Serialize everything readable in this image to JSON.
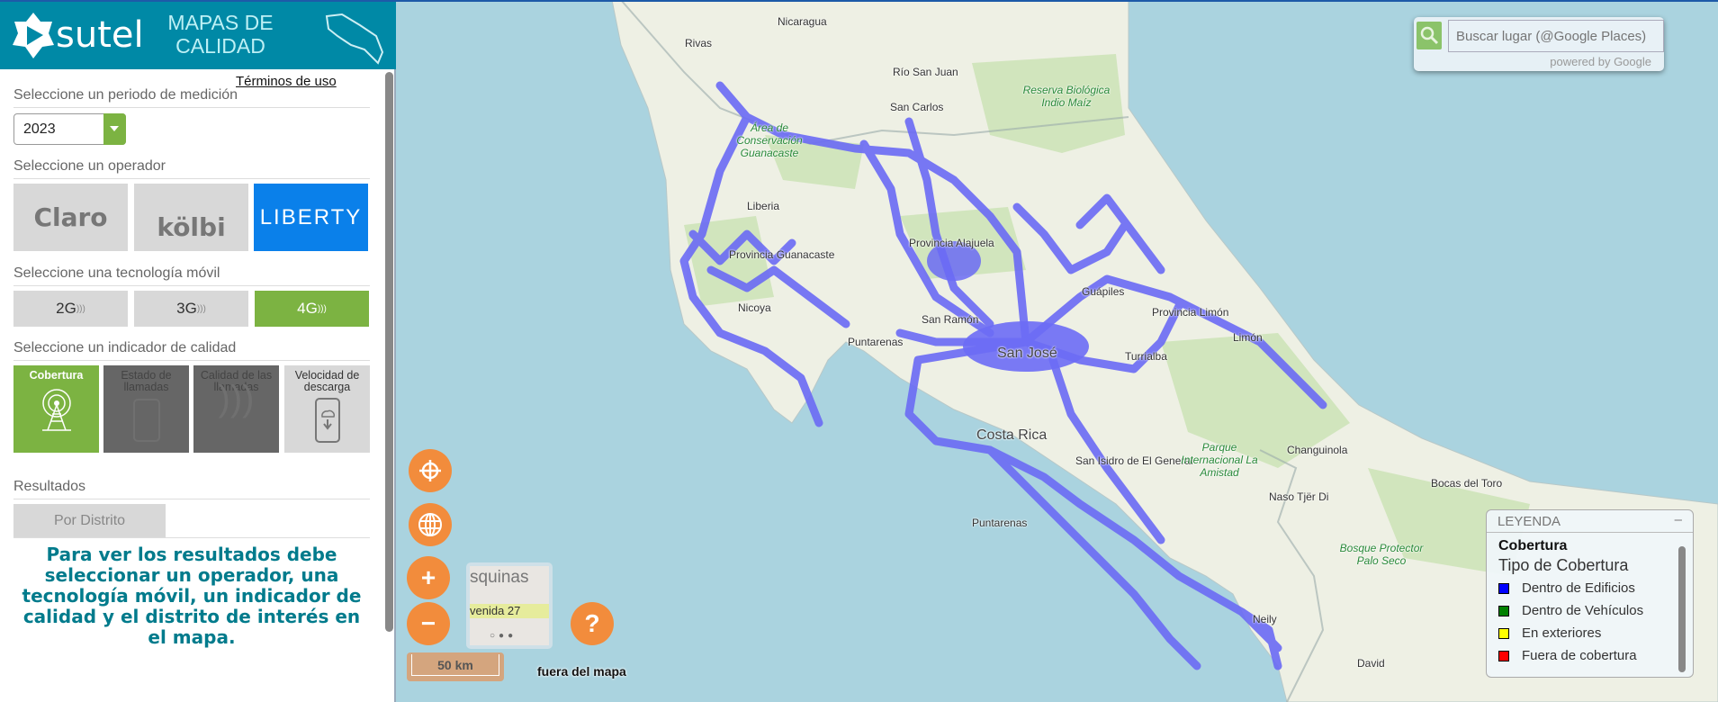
{
  "header": {
    "logo": "sutel",
    "title": "MAPAS DE CALIDAD"
  },
  "sidebar": {
    "terms_link": "Términos de uso",
    "period": {
      "label": "Seleccione un periodo de medición",
      "value": "2023"
    },
    "operator": {
      "label": "Seleccione un operador",
      "items": [
        {
          "label": "Claro"
        },
        {
          "label": "kölbi"
        },
        {
          "label": "LIBERTY",
          "selected": true
        }
      ]
    },
    "technology": {
      "label": "Seleccione una tecnología móvil",
      "items": [
        {
          "label": "2G"
        },
        {
          "label": "3G"
        },
        {
          "label": "4G",
          "selected": true
        }
      ]
    },
    "indicator": {
      "label": "Seleccione un indicador de calidad",
      "items": [
        {
          "label": "Cobertura",
          "selected": true
        },
        {
          "label": "Estado de llamadas"
        },
        {
          "label": "Calidad de las llamadas"
        },
        {
          "label": "Velocidad de descarga"
        }
      ]
    },
    "results": {
      "label": "Resultados",
      "tab": "Por Distrito",
      "message": "Para ver los resultados debe seleccionar un operador, una tecnología móvil, un indicador de calidad y el distrito de interés en el mapa."
    }
  },
  "map": {
    "labels": [
      "Nicaragua",
      "Rivas",
      "Río San Juan",
      "San Carlos",
      "Reserva Biológica Indio Maíz",
      "Área de Conservación Guanacaste",
      "Liberia",
      "Provincia Guanacaste",
      "Nicoya",
      "Puntarenas",
      "San Ramón",
      "Provincia Alajuela",
      "San José",
      "Guápiles",
      "Provincia Limón",
      "Limón",
      "Turrialba",
      "Costa Rica",
      "San Isidro de El General",
      "Parque Internacional La Amistad",
      "Changuinola",
      "Naso Tjër Di",
      "Bocas del Toro",
      "Bosque Protector Palo Seco",
      "Puntarenas",
      "David",
      "Neily"
    ],
    "scale": "50 km",
    "off_map_text": "fuera del mapa",
    "search": {
      "placeholder": "Buscar lugar (@Google Places)",
      "powered": "powered by Google"
    },
    "controls": [
      "locate-icon",
      "globe-icon",
      "zoom-in",
      "zoom-out",
      "help"
    ],
    "coverage_color": "#6b6bf5",
    "thumbnail": {
      "text1": "squinas",
      "text2": "venida 27"
    }
  },
  "legend": {
    "header": "LEYENDA",
    "collapse": "–",
    "title": "Cobertura",
    "subtitle": "Tipo de Cobertura",
    "items": [
      {
        "label": "Dentro de Edificios",
        "color": "#0000ff"
      },
      {
        "label": "Dentro de Vehículos",
        "color": "#008000"
      },
      {
        "label": "En exteriores",
        "color": "#ffff00"
      },
      {
        "label": "Fuera de cobertura",
        "color": "#ff0000"
      }
    ]
  }
}
